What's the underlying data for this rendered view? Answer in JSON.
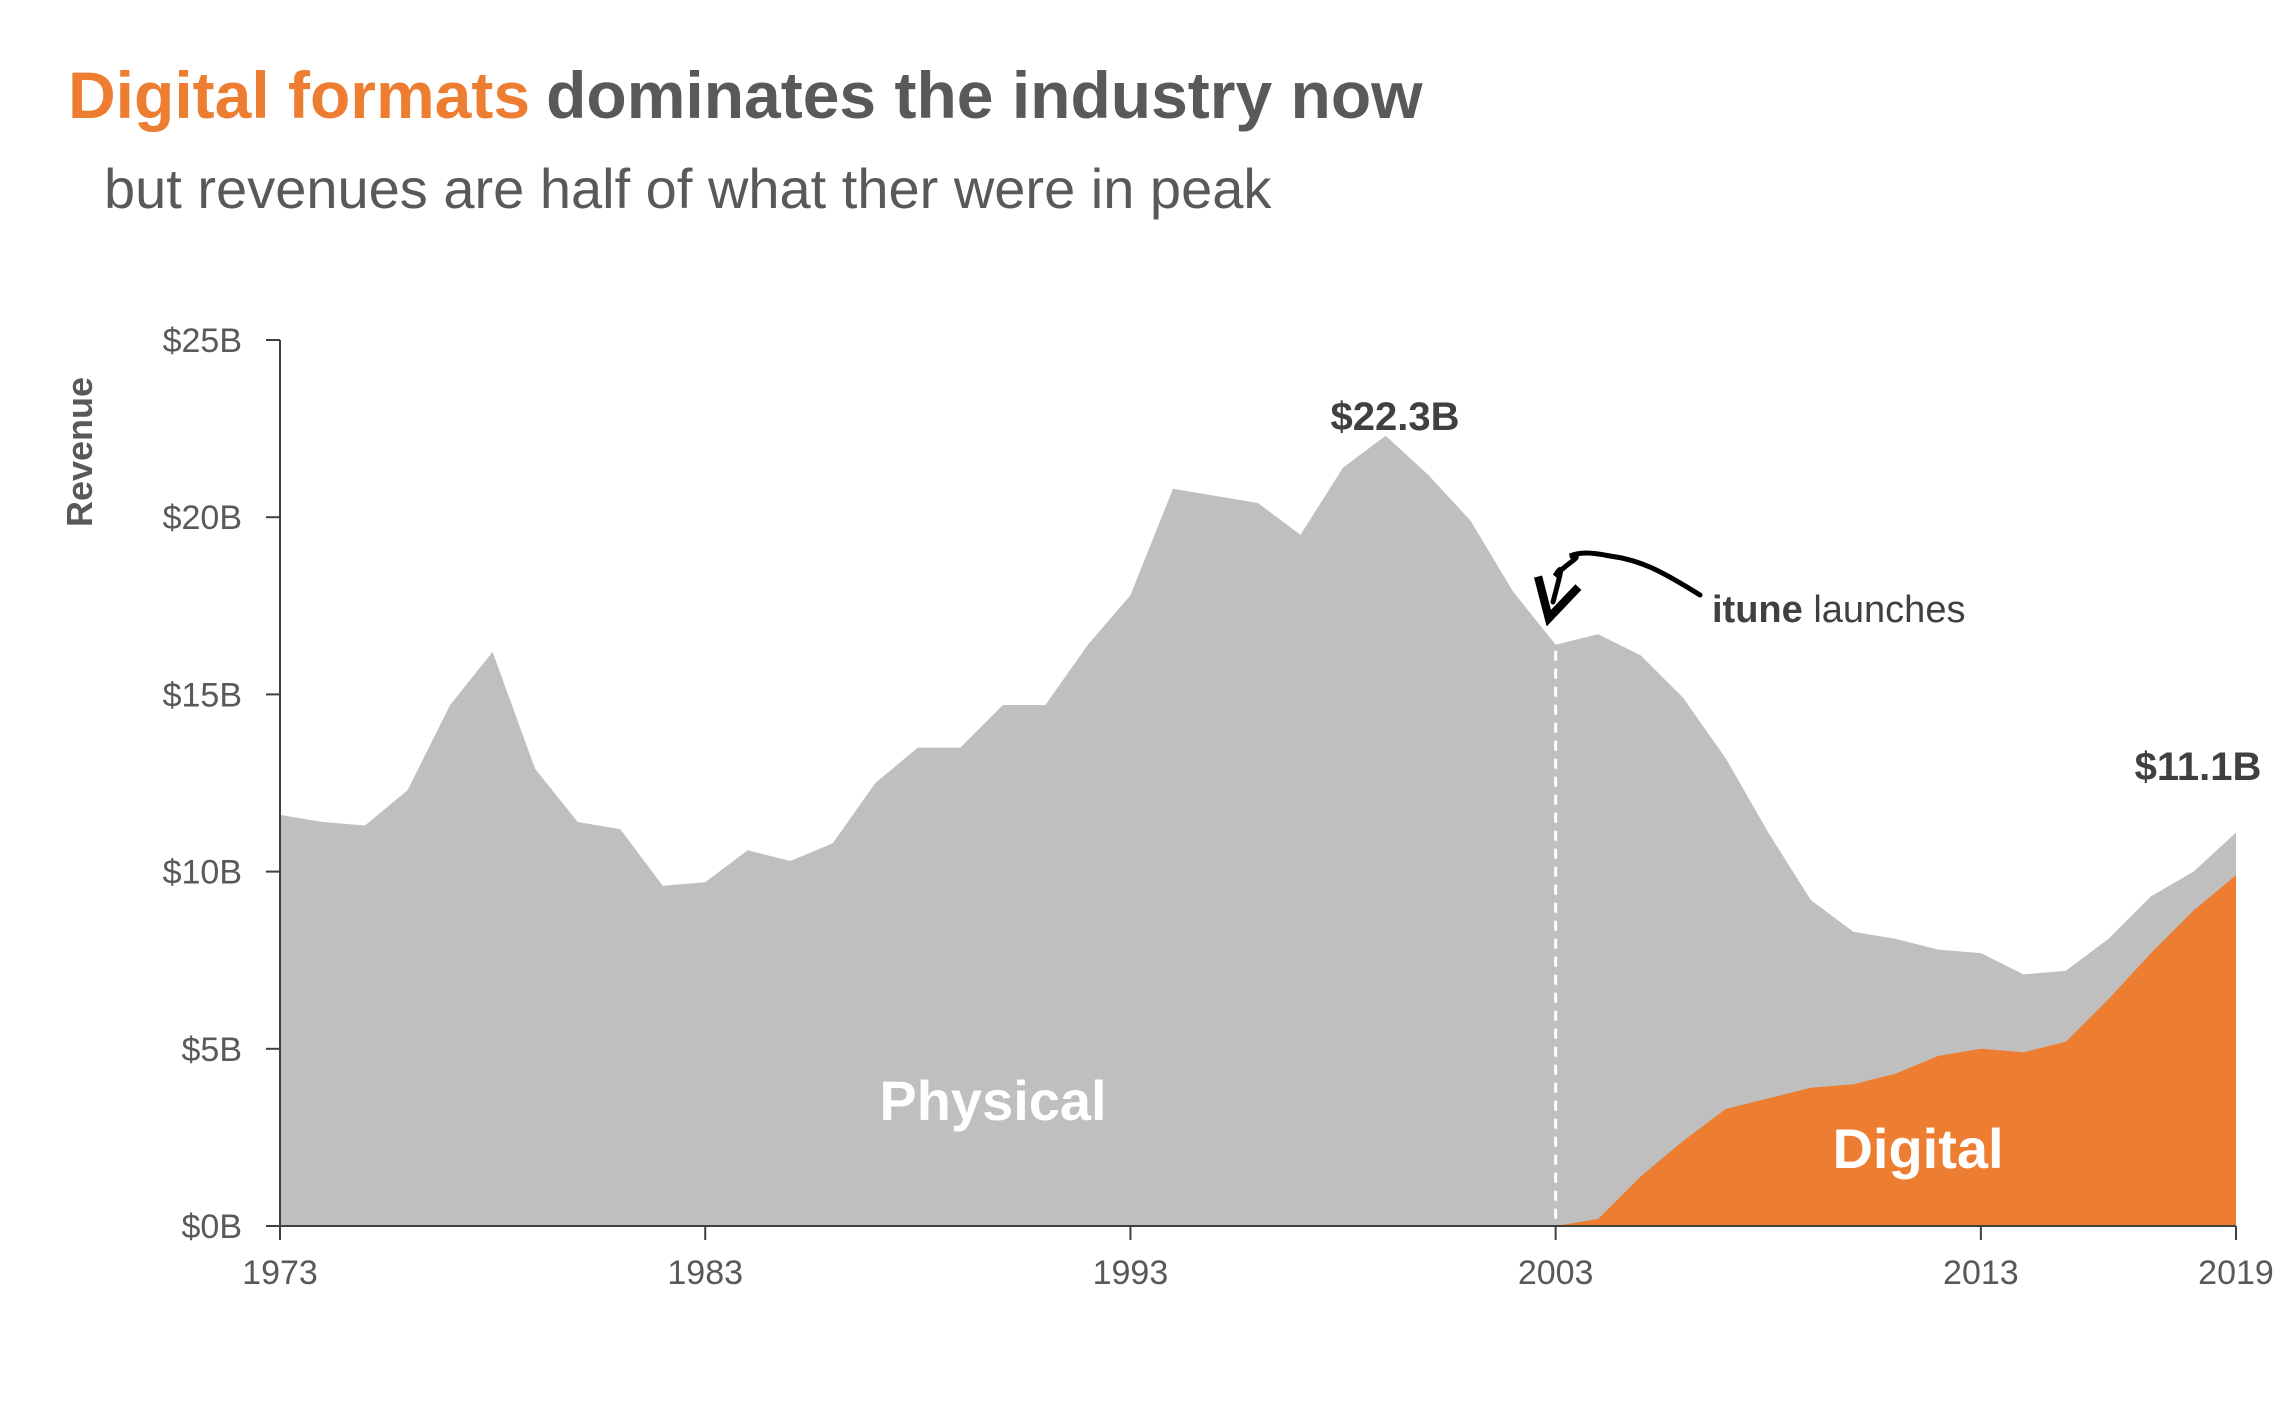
{
  "title": {
    "highlight": "Digital formats",
    "rest": "dominates the industry now"
  },
  "subtitle": "but revenues are half of what ther were in peak",
  "colors": {
    "physical": "#BFBFBF",
    "digital": "#ED7D31",
    "text": "#595959",
    "axis": "#404040"
  },
  "chart_data": {
    "type": "area",
    "stacked": true,
    "ylabel": "Revenue",
    "xlabel": "",
    "ylim": [
      0,
      25
    ],
    "xlim": [
      1973,
      2019
    ],
    "y_ticks": [
      "$0B",
      "$5B",
      "$10B",
      "$15B",
      "$20B",
      "$25B"
    ],
    "x_ticks": [
      "1973",
      "1983",
      "1993",
      "2003",
      "2013",
      "2019"
    ],
    "x": [
      1973,
      1974,
      1975,
      1976,
      1977,
      1978,
      1979,
      1980,
      1981,
      1982,
      1983,
      1984,
      1985,
      1986,
      1987,
      1988,
      1989,
      1990,
      1991,
      1992,
      1993,
      1994,
      1995,
      1996,
      1997,
      1998,
      1999,
      2000,
      2001,
      2002,
      2003,
      2004,
      2005,
      2006,
      2007,
      2008,
      2009,
      2010,
      2011,
      2012,
      2013,
      2014,
      2015,
      2016,
      2017,
      2018,
      2019
    ],
    "series": [
      {
        "name": "Physical",
        "values": [
          11.6,
          11.4,
          11.3,
          12.3,
          14.7,
          16.2,
          12.9,
          11.4,
          11.2,
          9.6,
          9.7,
          10.6,
          10.3,
          10.8,
          12.5,
          13.5,
          13.5,
          14.7,
          14.7,
          16.4,
          17.8,
          20.8,
          20.6,
          20.4,
          19.5,
          21.4,
          22.3,
          21.2,
          19.9,
          17.9,
          16.4,
          16.5,
          14.7,
          12.5,
          9.9,
          7.5,
          5.3,
          4.3,
          3.8,
          3.0,
          2.7,
          2.2,
          2.0,
          1.7,
          1.6,
          1.1,
          1.2
        ]
      },
      {
        "name": "Digital",
        "values": [
          0,
          0,
          0,
          0,
          0,
          0,
          0,
          0,
          0,
          0,
          0,
          0,
          0,
          0,
          0,
          0,
          0,
          0,
          0,
          0,
          0,
          0,
          0,
          0,
          0,
          0,
          0,
          0,
          0,
          0,
          0,
          0.2,
          1.4,
          2.4,
          3.3,
          3.6,
          3.9,
          4.0,
          4.3,
          4.8,
          5.0,
          4.9,
          5.2,
          6.4,
          7.7,
          8.9,
          9.9
        ]
      }
    ],
    "annotations": {
      "peak_label": "$22.3B",
      "end_label": "$11.1B",
      "event_bold": "itune",
      "event_rest": " launches",
      "event_year": 2003
    }
  }
}
